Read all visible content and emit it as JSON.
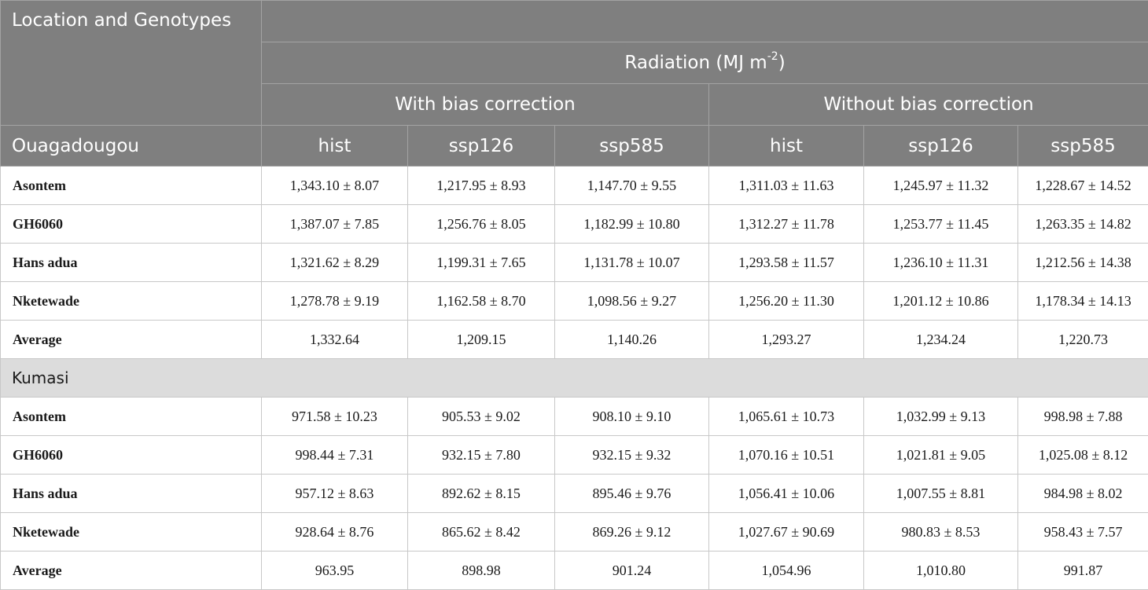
{
  "header": {
    "corner": "Location and Genotypes",
    "group": "Radiation (MJ m",
    "group_sup": "-2",
    "group_end": ")",
    "with_bias": "With bias correction",
    "without_bias": "Without bias correction",
    "first_location": "Ouagadougou",
    "scenarios": [
      "hist",
      "ssp126",
      "ssp585",
      "hist",
      "ssp126",
      "ssp585"
    ]
  },
  "sections": [
    {
      "location": "Ouagadougou",
      "rows": [
        {
          "genotype": "Asontem",
          "values": [
            "1,343.10 ± 8.07",
            "1,217.95 ± 8.93",
            "1,147.70 ± 9.55",
            "1,311.03 ± 11.63",
            "1,245.97 ± 11.32",
            "1,228.67 ± 14.52"
          ]
        },
        {
          "genotype": "GH6060",
          "values": [
            "1,387.07 ± 7.85",
            "1,256.76 ± 8.05",
            "1,182.99 ± 10.80",
            "1,312.27 ± 11.78",
            "1,253.77 ± 11.45",
            "1,263.35 ± 14.82"
          ]
        },
        {
          "genotype": "Hans adua",
          "values": [
            "1,321.62 ± 8.29",
            "1,199.31 ± 7.65",
            "1,131.78 ± 10.07",
            "1,293.58 ± 11.57",
            "1,236.10 ± 11.31",
            "1,212.56 ± 14.38"
          ]
        },
        {
          "genotype": "Nketewade",
          "values": [
            "1,278.78 ± 9.19",
            "1,162.58 ± 8.70",
            "1,098.56 ± 9.27",
            "1,256.20 ± 11.30",
            "1,201.12 ± 10.86",
            "1,178.34 ± 14.13"
          ]
        },
        {
          "genotype": "Average",
          "values": [
            "1,332.64",
            "1,209.15",
            "1,140.26",
            "1,293.27",
            "1,234.24",
            "1,220.73"
          ]
        }
      ]
    },
    {
      "location": "Kumasi",
      "rows": [
        {
          "genotype": "Asontem",
          "values": [
            "971.58 ± 10.23",
            "905.53 ± 9.02",
            "908.10 ± 9.10",
            "1,065.61 ± 10.73",
            "1,032.99 ± 9.13",
            "998.98 ± 7.88"
          ]
        },
        {
          "genotype": "GH6060",
          "values": [
            "998.44 ± 7.31",
            "932.15 ± 7.80",
            "932.15 ± 9.32",
            "1,070.16 ± 10.51",
            "1,021.81 ± 9.05",
            "1,025.08 ± 8.12"
          ]
        },
        {
          "genotype": "Hans adua",
          "values": [
            "957.12 ± 8.63",
            "892.62 ± 8.15",
            "895.46 ± 9.76",
            "1,056.41 ± 10.06",
            "1,007.55 ± 8.81",
            "984.98 ± 8.02"
          ]
        },
        {
          "genotype": "Nketewade",
          "values": [
            "928.64 ± 8.76",
            "865.62 ± 8.42",
            "869.26 ± 9.12",
            "1,027.67 ± 90.69",
            "980.83 ± 8.53",
            "958.43 ± 7.57"
          ]
        },
        {
          "genotype": "Average",
          "values": [
            "963.95",
            "898.98",
            "901.24",
            "1,054.96",
            "1,010.80",
            "991.87"
          ]
        }
      ]
    }
  ]
}
